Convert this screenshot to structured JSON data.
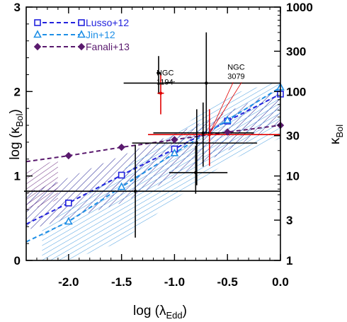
{
  "chart_data": {
    "type": "scatter",
    "xlabel": "log (λEdd)",
    "ylabel": "log (κBol)",
    "y2label": "κBol",
    "xlim": [
      -2.4,
      0.0
    ],
    "ylim": [
      0.0,
      3.0
    ],
    "x_ticks": [
      -2.0,
      -1.5,
      -1.0,
      -0.5,
      0.0
    ],
    "x_tick_labels": [
      "-2.0",
      "-1.5",
      "-1.0",
      "-0.5",
      "0.0"
    ],
    "y_ticks": [
      0,
      1,
      2,
      3
    ],
    "y_tick_labels": [
      "0",
      "1",
      "2",
      "3"
    ],
    "y2_ticks": [
      1,
      3,
      10,
      30,
      100,
      300,
      1000
    ],
    "y2_tick_labels": [
      "1",
      "3",
      "10",
      "30",
      "100",
      "300",
      "1000"
    ],
    "legend_position": "top-left",
    "series": [
      {
        "name": "Lusso+12",
        "color": "#2222dd",
        "marker": "square",
        "x": [
          -2.0,
          -1.5,
          -1.0,
          -0.5,
          0.0
        ],
        "y": [
          0.68,
          1.01,
          1.32,
          1.65,
          1.97
        ]
      },
      {
        "name": "Jin+12",
        "color": "#1e8fe6",
        "marker": "triangle",
        "x": [
          -2.0,
          -1.5,
          -1.0,
          -0.5,
          0.0
        ],
        "y": [
          0.46,
          0.87,
          1.27,
          1.66,
          2.05
        ]
      },
      {
        "name": "Fanali+13",
        "color": "#5a1a6e",
        "marker": "diamond",
        "x": [
          -2.0,
          -1.5,
          -1.0,
          -0.5,
          0.0
        ],
        "y": [
          1.24,
          1.34,
          1.43,
          1.52,
          1.6
        ]
      }
    ],
    "bands": [
      {
        "series": "Lusso+12",
        "color": "#3a3aa0",
        "x": [
          -2.4,
          -2.0,
          -1.5,
          -1.0,
          -0.5,
          0.0
        ],
        "upper": [
          0.8,
          0.98,
          1.24,
          1.5,
          1.76,
          2.03
        ],
        "lower": [
          0.36,
          0.49,
          0.68,
          0.98,
          1.3,
          1.63
        ]
      },
      {
        "series": "Fanali+13",
        "color": "#5a1a6e",
        "x": [
          -2.4,
          -2.1
        ],
        "upper": [
          1.05,
          1.2
        ],
        "lower": [
          0.58,
          0.72
        ]
      },
      {
        "series": "Jin+12",
        "color": "#4a9ee0",
        "x": [
          -2.25,
          -2.0,
          -1.5,
          -1.0,
          -0.5,
          0.0
        ],
        "upper": [
          0.37,
          0.62,
          1.06,
          1.52,
          1.96,
          2.12
        ],
        "lower": [
          0.0,
          0.0,
          0.22,
          0.72,
          1.17,
          1.45
        ]
      }
    ],
    "points": [
      {
        "color": "#000000",
        "x": -1.15,
        "y": 2.22,
        "xerr": [
          0.02,
          0.02
        ],
        "yerr": [
          0.25,
          0.2
        ]
      },
      {
        "color": "#e00000",
        "x": -1.13,
        "y": 1.98,
        "xerr": [
          0.03,
          0.03
        ],
        "yerr": [
          0.25,
          0.23
        ]
      },
      {
        "color": "#000000",
        "x": -0.7,
        "y": 2.1,
        "xerr": [
          0.78,
          0.7
        ],
        "yerr": [
          0.6,
          0.6
        ]
      },
      {
        "color": "#e00000",
        "x": -0.67,
        "y": 1.49,
        "xerr": [
          0.58,
          0.67
        ],
        "yerr": [
          0.37,
          0.3
        ]
      },
      {
        "color": "#000000",
        "x": -0.73,
        "y": 1.51,
        "xerr": [
          0.47,
          0.48
        ],
        "yerr": [
          0.4,
          0.36
        ]
      },
      {
        "color": "#000000",
        "x": -0.79,
        "y": 1.39,
        "xerr": [
          0.61,
          0.57
        ],
        "yerr": [
          0.5,
          0.4
        ]
      },
      {
        "color": "#000000",
        "x": -0.8,
        "y": 1.04,
        "xerr": [
          0.25,
          0.3
        ],
        "yerr": [
          0.25,
          0.32
        ]
      },
      {
        "color": "#000000",
        "x": -1.37,
        "y": 0.82,
        "xerr": [
          1.05,
          1.37
        ],
        "yerr": [
          0.55,
          0.55
        ]
      }
    ],
    "annotations": [
      {
        "label_line1": "NGC",
        "label_line2": "1194",
        "text_x": -1.17,
        "text_y": 2.19,
        "target_x": -1.13,
        "target_y": 2.1,
        "pointer_color": "#000000"
      },
      {
        "label_line1": "NGC",
        "label_line2": "3079",
        "text_x": -0.5,
        "text_y": 2.26,
        "target_x": -0.67,
        "target_y": 1.5,
        "pointer_color": "#e00000"
      }
    ]
  }
}
